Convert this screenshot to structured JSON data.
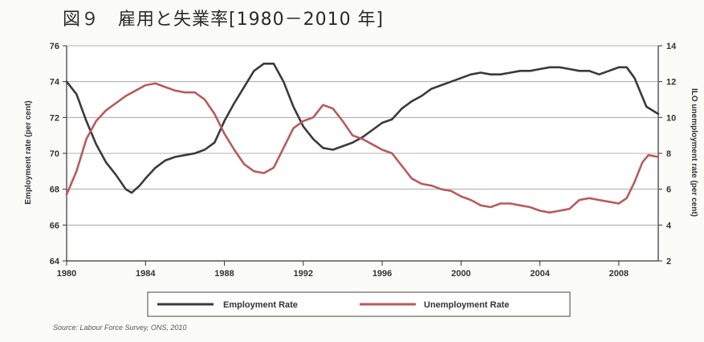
{
  "page": {
    "title": "図９　雇用と失業率[1980－2010 年]",
    "source": "Source: Labour Force Survey, ONS, 2010"
  },
  "chart_data": {
    "type": "line",
    "title": "",
    "xlabel": "",
    "ylabel": "Employment rate (per cent)",
    "y2label": "ILO unemployment rate (per cent)",
    "xlim": [
      1980,
      2010
    ],
    "ylim": [
      64,
      76
    ],
    "y2lim": [
      2,
      14
    ],
    "x_ticks": [
      "1980",
      "1984",
      "1988",
      "1992",
      "1996",
      "2000",
      "2004",
      "2008"
    ],
    "y_ticks": [
      "64",
      "66",
      "68",
      "70",
      "72",
      "74",
      "76"
    ],
    "y2_ticks": [
      "2",
      "4",
      "6",
      "8",
      "10",
      "12",
      "14"
    ],
    "grid": true,
    "legend_position": "bottom",
    "series": [
      {
        "name": "Employment Rate",
        "axis": "left",
        "color": "#3a3a3a",
        "points": [
          [
            1980.0,
            74.0
          ],
          [
            1980.5,
            73.3
          ],
          [
            1981.0,
            71.8
          ],
          [
            1981.5,
            70.5
          ],
          [
            1982.0,
            69.5
          ],
          [
            1982.5,
            68.8
          ],
          [
            1983.0,
            68.0
          ],
          [
            1983.3,
            67.8
          ],
          [
            1983.7,
            68.2
          ],
          [
            1984.0,
            68.6
          ],
          [
            1984.5,
            69.2
          ],
          [
            1985.0,
            69.6
          ],
          [
            1985.5,
            69.8
          ],
          [
            1986.0,
            69.9
          ],
          [
            1986.5,
            70.0
          ],
          [
            1987.0,
            70.2
          ],
          [
            1987.5,
            70.6
          ],
          [
            1988.0,
            71.8
          ],
          [
            1988.5,
            72.8
          ],
          [
            1989.0,
            73.7
          ],
          [
            1989.5,
            74.6
          ],
          [
            1990.0,
            75.0
          ],
          [
            1990.5,
            75.0
          ],
          [
            1991.0,
            74.0
          ],
          [
            1991.5,
            72.6
          ],
          [
            1992.0,
            71.5
          ],
          [
            1992.5,
            70.8
          ],
          [
            1993.0,
            70.3
          ],
          [
            1993.5,
            70.2
          ],
          [
            1994.0,
            70.4
          ],
          [
            1994.5,
            70.6
          ],
          [
            1995.0,
            70.9
          ],
          [
            1995.5,
            71.3
          ],
          [
            1996.0,
            71.7
          ],
          [
            1996.5,
            71.9
          ],
          [
            1997.0,
            72.5
          ],
          [
            1997.5,
            72.9
          ],
          [
            1998.0,
            73.2
          ],
          [
            1998.5,
            73.6
          ],
          [
            1999.0,
            73.8
          ],
          [
            1999.5,
            74.0
          ],
          [
            2000.0,
            74.2
          ],
          [
            2000.5,
            74.4
          ],
          [
            2001.0,
            74.5
          ],
          [
            2001.5,
            74.4
          ],
          [
            2002.0,
            74.4
          ],
          [
            2002.5,
            74.5
          ],
          [
            2003.0,
            74.6
          ],
          [
            2003.5,
            74.6
          ],
          [
            2004.0,
            74.7
          ],
          [
            2004.5,
            74.8
          ],
          [
            2005.0,
            74.8
          ],
          [
            2005.5,
            74.7
          ],
          [
            2006.0,
            74.6
          ],
          [
            2006.5,
            74.6
          ],
          [
            2007.0,
            74.4
          ],
          [
            2007.5,
            74.6
          ],
          [
            2008.0,
            74.8
          ],
          [
            2008.4,
            74.8
          ],
          [
            2008.8,
            74.2
          ],
          [
            2009.1,
            73.4
          ],
          [
            2009.4,
            72.6
          ],
          [
            2009.7,
            72.4
          ],
          [
            2010.0,
            72.2
          ]
        ]
      },
      {
        "name": "Unemployment Rate",
        "axis": "right",
        "color": "#b85b5b",
        "points": [
          [
            1980.0,
            5.7
          ],
          [
            1980.5,
            7.0
          ],
          [
            1981.0,
            8.8
          ],
          [
            1981.5,
            9.8
          ],
          [
            1982.0,
            10.4
          ],
          [
            1982.5,
            10.8
          ],
          [
            1983.0,
            11.2
          ],
          [
            1983.5,
            11.5
          ],
          [
            1984.0,
            11.8
          ],
          [
            1984.5,
            11.9
          ],
          [
            1985.0,
            11.7
          ],
          [
            1985.5,
            11.5
          ],
          [
            1986.0,
            11.4
          ],
          [
            1986.5,
            11.4
          ],
          [
            1987.0,
            11.0
          ],
          [
            1987.5,
            10.2
          ],
          [
            1988.0,
            9.1
          ],
          [
            1988.5,
            8.2
          ],
          [
            1989.0,
            7.4
          ],
          [
            1989.5,
            7.0
          ],
          [
            1990.0,
            6.9
          ],
          [
            1990.5,
            7.2
          ],
          [
            1991.0,
            8.3
          ],
          [
            1991.5,
            9.4
          ],
          [
            1992.0,
            9.8
          ],
          [
            1992.5,
            10.0
          ],
          [
            1993.0,
            10.7
          ],
          [
            1993.5,
            10.5
          ],
          [
            1994.0,
            9.8
          ],
          [
            1994.5,
            9.0
          ],
          [
            1995.0,
            8.8
          ],
          [
            1995.5,
            8.5
          ],
          [
            1996.0,
            8.2
          ],
          [
            1996.5,
            8.0
          ],
          [
            1997.0,
            7.3
          ],
          [
            1997.5,
            6.6
          ],
          [
            1998.0,
            6.3
          ],
          [
            1998.5,
            6.2
          ],
          [
            1999.0,
            6.0
          ],
          [
            1999.5,
            5.9
          ],
          [
            2000.0,
            5.6
          ],
          [
            2000.5,
            5.4
          ],
          [
            2001.0,
            5.1
          ],
          [
            2001.5,
            5.0
          ],
          [
            2002.0,
            5.2
          ],
          [
            2002.5,
            5.2
          ],
          [
            2003.0,
            5.1
          ],
          [
            2003.5,
            5.0
          ],
          [
            2004.0,
            4.8
          ],
          [
            2004.5,
            4.7
          ],
          [
            2005.0,
            4.8
          ],
          [
            2005.5,
            4.9
          ],
          [
            2006.0,
            5.4
          ],
          [
            2006.5,
            5.5
          ],
          [
            2007.0,
            5.4
          ],
          [
            2007.5,
            5.3
          ],
          [
            2008.0,
            5.2
          ],
          [
            2008.4,
            5.5
          ],
          [
            2008.8,
            6.4
          ],
          [
            2009.2,
            7.5
          ],
          [
            2009.5,
            7.9
          ],
          [
            2010.0,
            7.8
          ]
        ]
      }
    ]
  }
}
